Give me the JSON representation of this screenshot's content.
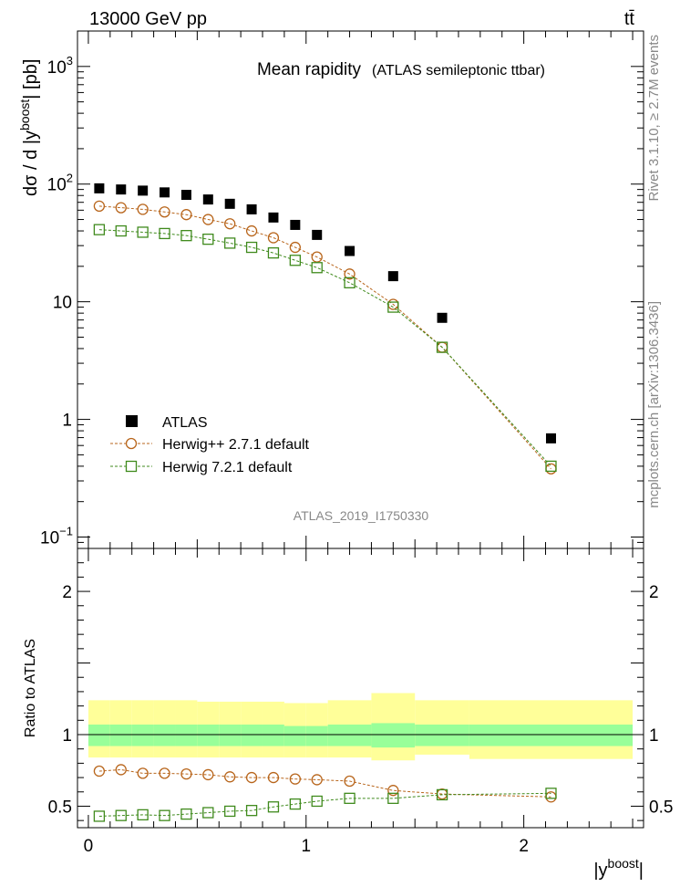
{
  "header": {
    "energy_label": "13000 GeV pp",
    "process_label": "tt̄"
  },
  "side_text": {
    "rivet_label": "Rivet 3.1.10, ≥ 2.7M events",
    "mcplots_label": "mcplots.cern.ch [arXiv:1306.3436]"
  },
  "chart_data": [
    {
      "type": "scatter",
      "panel": "main",
      "title": "Mean rapidity",
      "subtitle": "(ATLAS semileptonic ttbar)",
      "ylabel": "dσ / d |y",
      "ylabel_sup": "boost",
      "ylabel_end": "| [pb]",
      "yscale": "log",
      "ylim": [
        0.08,
        2000
      ],
      "xlim": [
        -0.05,
        2.55
      ],
      "y_ticks": [
        {
          "value": 0.1,
          "mant": "10",
          "exp": "−1"
        },
        {
          "value": 1,
          "mant": "1",
          "exp": ""
        },
        {
          "value": 10,
          "mant": "10",
          "exp": ""
        },
        {
          "value": 100,
          "mant": "10",
          "exp": "2"
        },
        {
          "value": 1000,
          "mant": "10",
          "exp": "3"
        }
      ],
      "watermark": "ATLAS_2019_I1750330",
      "legend_position": "bottom-left",
      "x": [
        0.05,
        0.15,
        0.25,
        0.35,
        0.45,
        0.55,
        0.65,
        0.75,
        0.85,
        0.95,
        1.05,
        1.2,
        1.4,
        1.625,
        2.125
      ],
      "series": [
        {
          "name": "ATLAS",
          "marker": "filled-square",
          "color": "#000000",
          "values": [
            92,
            90,
            88,
            85,
            81,
            74,
            68,
            61,
            52,
            45,
            37,
            27,
            16.5,
            7.3,
            0.69
          ]
        },
        {
          "name": "Herwig++ 2.7.1 default",
          "marker": "open-circle",
          "color": "#b8651b",
          "values": [
            65,
            63,
            61,
            58,
            55,
            50,
            46,
            40,
            35,
            29,
            24,
            17.2,
            9.5,
            4.1,
            0.38
          ]
        },
        {
          "name": "Herwig 7.2.1 default",
          "marker": "open-square",
          "color": "#3f8a1c",
          "values": [
            41,
            40,
            39,
            38,
            36.5,
            34,
            31.5,
            29,
            26,
            22.5,
            19.5,
            14.5,
            9,
            4.1,
            0.4
          ]
        }
      ]
    },
    {
      "type": "scatter",
      "panel": "ratio",
      "ylabel": "Ratio to ATLAS",
      "xlabel": "|y",
      "xlabel_sup": "boost",
      "xlabel_end": "|",
      "ylim": [
        0.35,
        2.3
      ],
      "y_ticks": [
        0.5,
        1,
        2
      ],
      "y_tick_labels": [
        "0.5",
        "1",
        "2"
      ],
      "x_ticks": [
        0,
        1,
        2
      ],
      "x_tick_labels": [
        "0",
        "1",
        "2"
      ],
      "bin_edges": [
        0,
        0.1,
        0.2,
        0.3,
        0.4,
        0.5,
        0.6,
        0.7,
        0.8,
        0.9,
        1.0,
        1.1,
        1.3,
        1.5,
        1.75,
        2.5
      ],
      "band_outer": {
        "color": "#ffff99",
        "low": [
          0.84,
          0.84,
          0.84,
          0.84,
          0.84,
          0.84,
          0.84,
          0.84,
          0.84,
          0.84,
          0.84,
          0.84,
          0.82,
          0.86,
          0.83
        ],
        "high": [
          1.24,
          1.24,
          1.24,
          1.24,
          1.24,
          1.23,
          1.23,
          1.23,
          1.23,
          1.22,
          1.22,
          1.24,
          1.29,
          1.24,
          1.24
        ]
      },
      "band_inner": {
        "color": "#99ff99",
        "low": [
          0.92,
          0.92,
          0.92,
          0.92,
          0.92,
          0.92,
          0.92,
          0.92,
          0.92,
          0.92,
          0.92,
          0.92,
          0.91,
          0.92,
          0.92
        ],
        "high": [
          1.07,
          1.07,
          1.07,
          1.07,
          1.07,
          1.07,
          1.07,
          1.07,
          1.07,
          1.06,
          1.06,
          1.07,
          1.08,
          1.07,
          1.07
        ]
      },
      "x": [
        0.05,
        0.15,
        0.25,
        0.35,
        0.45,
        0.55,
        0.65,
        0.75,
        0.85,
        0.95,
        1.05,
        1.2,
        1.4,
        1.625,
        2.125
      ],
      "series": [
        {
          "name": "Herwig++ 2.7.1 default",
          "marker": "open-circle",
          "color": "#b8651b",
          "values": [
            0.745,
            0.755,
            0.73,
            0.73,
            0.725,
            0.72,
            0.705,
            0.7,
            0.7,
            0.69,
            0.685,
            0.675,
            0.61,
            0.585,
            0.565
          ]
        },
        {
          "name": "Herwig 7.2.1 default",
          "marker": "open-square",
          "color": "#3f8a1c",
          "values": [
            0.43,
            0.435,
            0.44,
            0.435,
            0.445,
            0.455,
            0.465,
            0.47,
            0.495,
            0.515,
            0.535,
            0.555,
            0.555,
            0.58,
            0.59
          ]
        }
      ]
    }
  ]
}
